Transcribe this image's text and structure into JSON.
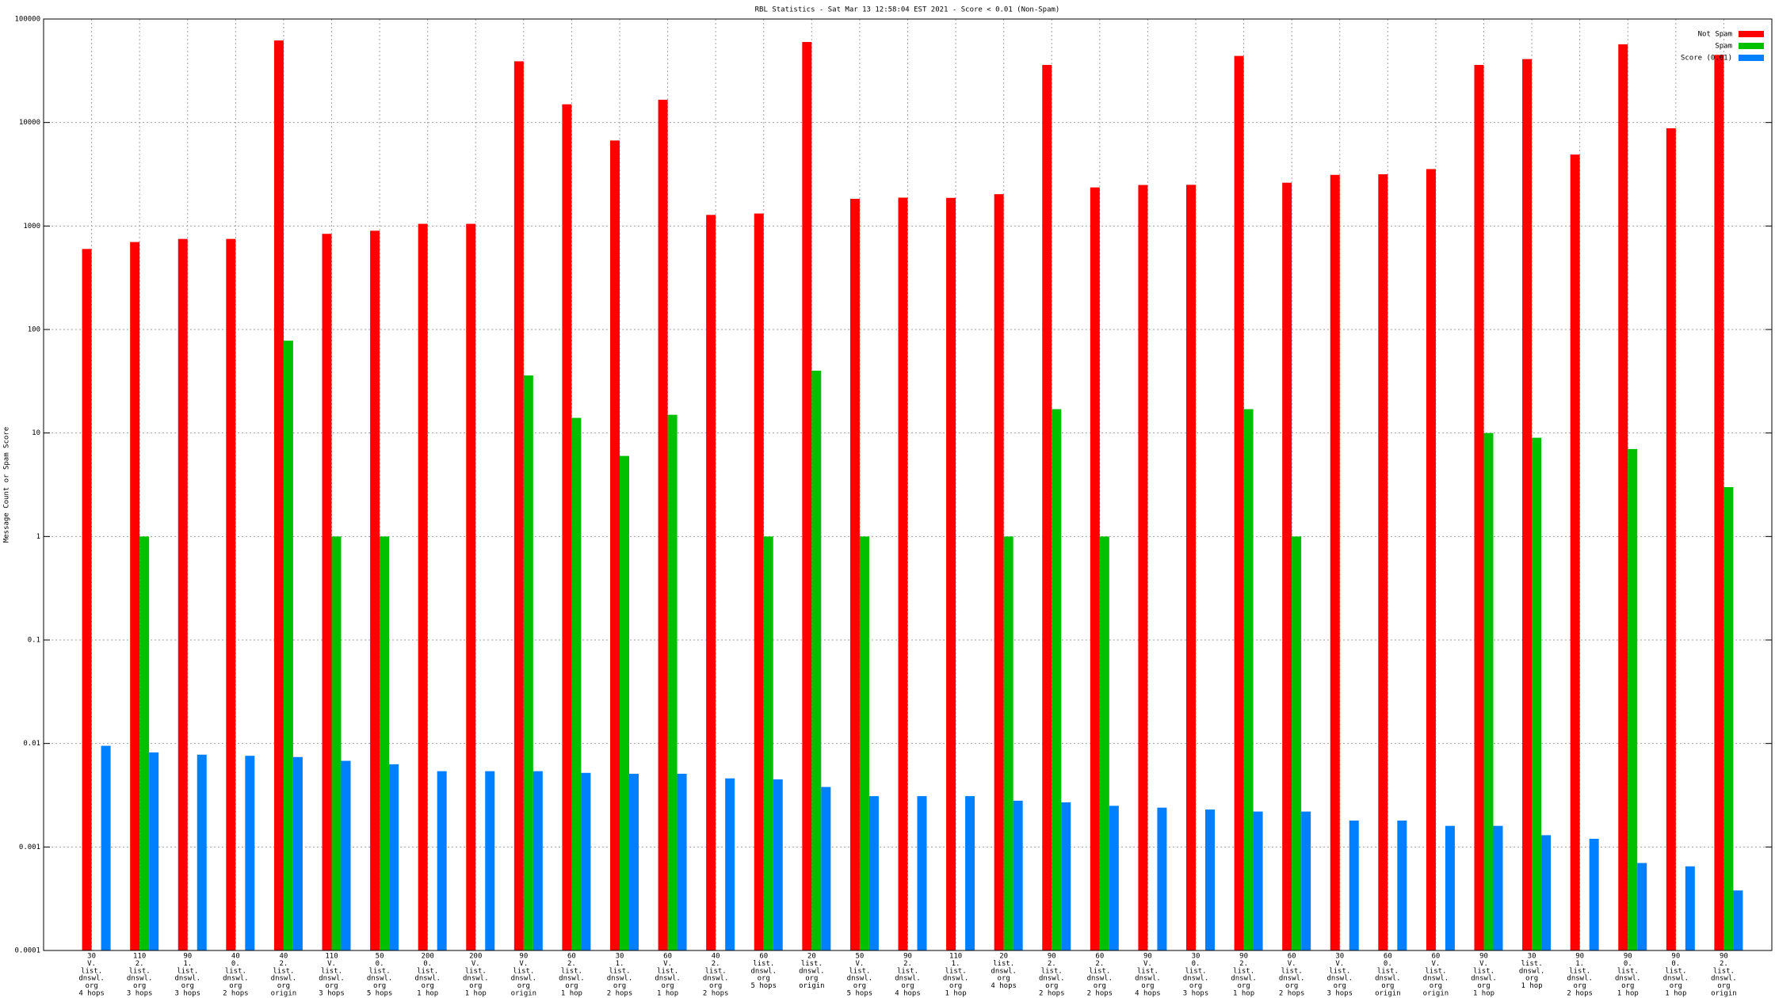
{
  "chart_data": {
    "type": "bar",
    "title": "RBL Statistics - Sat Mar 13 12:58:04 EST 2021 - Score < 0.01 (Non-Spam)",
    "y_label": "Message Count or Spam Score",
    "log_scale": true,
    "grid": true,
    "legend": "top-right",
    "categories": [
      [
        "30",
        "V.",
        "list.",
        "dnswl.",
        "org",
        "4 hops"
      ],
      [
        "110",
        "2.",
        "list.",
        "dnswl.",
        "org",
        "3 hops"
      ],
      [
        "90",
        "1.",
        "list.",
        "dnswl.",
        "org",
        "3 hops"
      ],
      [
        "40",
        "0.",
        "list.",
        "dnswl.",
        "org",
        "2 hops"
      ],
      [
        "40",
        "2.",
        "list.",
        "dnswl.",
        "org",
        "origin"
      ],
      [
        "110",
        "V.",
        "list.",
        "dnswl.",
        "org",
        "3 hops"
      ],
      [
        "50",
        "0.",
        "list.",
        "dnswl.",
        "org",
        "5 hops"
      ],
      [
        "200",
        "0.",
        "list.",
        "dnswl.",
        "org",
        "1 hop"
      ],
      [
        "200",
        "V.",
        "list.",
        "dnswl.",
        "org",
        "1 hop"
      ],
      [
        "90",
        "V.",
        "list.",
        "dnswl.",
        "org",
        "origin"
      ],
      [
        "60",
        "2.",
        "list.",
        "dnswl.",
        "org",
        "1 hop"
      ],
      [
        "30",
        "1.",
        "list.",
        "dnswl.",
        "org",
        "2 hops"
      ],
      [
        "60",
        "V.",
        "list.",
        "dnswl.",
        "org",
        "1 hop"
      ],
      [
        "40",
        "2.",
        "list.",
        "dnswl.",
        "org",
        "2 hops"
      ],
      [
        "60",
        "list.",
        "dnswl.",
        "org",
        "5 hops"
      ],
      [
        "20",
        "list.",
        "dnswl.",
        "org",
        "origin"
      ],
      [
        "50",
        "V.",
        "list.",
        "dnswl.",
        "org",
        "5 hops"
      ],
      [
        "90",
        "2.",
        "list.",
        "dnswl.",
        "org",
        "4 hops"
      ],
      [
        "110",
        "1.",
        "list.",
        "dnswl.",
        "org",
        "1 hop"
      ],
      [
        "20",
        "list.",
        "dnswl.",
        "org",
        "4 hops"
      ],
      [
        "90",
        "2.",
        "list.",
        "dnswl.",
        "org",
        "2 hops"
      ],
      [
        "60",
        "2.",
        "list.",
        "dnswl.",
        "org",
        "2 hops"
      ],
      [
        "90",
        "V.",
        "list.",
        "dnswl.",
        "org",
        "4 hops"
      ],
      [
        "30",
        "0.",
        "list.",
        "dnswl.",
        "org",
        "3 hops"
      ],
      [
        "90",
        "2.",
        "list.",
        "dnswl.",
        "org",
        "1 hop"
      ],
      [
        "60",
        "V.",
        "list.",
        "dnswl.",
        "org",
        "2 hops"
      ],
      [
        "30",
        "V.",
        "list.",
        "dnswl.",
        "org",
        "3 hops"
      ],
      [
        "60",
        "0.",
        "list.",
        "dnswl.",
        "org",
        "origin"
      ],
      [
        "60",
        "V.",
        "list.",
        "dnswl.",
        "org",
        "origin"
      ],
      [
        "90",
        "V.",
        "list.",
        "dnswl.",
        "org",
        "1 hop"
      ],
      [
        "30",
        "list.",
        "dnswl.",
        "org",
        "1 hop"
      ],
      [
        "90",
        "1.",
        "list.",
        "dnswl.",
        "org",
        "2 hops"
      ],
      [
        "90",
        "0.",
        "list.",
        "dnswl.",
        "org",
        "1 hop"
      ],
      [
        "90",
        "0.",
        "list.",
        "dnswl.",
        "org",
        "1 hop"
      ],
      [
        "90",
        "2.",
        "list.",
        "dnswl.",
        "org",
        "origin"
      ]
    ],
    "series": [
      {
        "name": "Not Spam",
        "color": "#ff0000",
        "values": [
          600,
          700,
          750,
          750,
          62000,
          840,
          900,
          1050,
          1050,
          39000,
          15000,
          6700,
          16600,
          1280,
          1320,
          60000,
          1830,
          1880,
          1870,
          2030,
          36000,
          2360,
          2490,
          2500,
          44000,
          2620,
          3120,
          3160,
          3550,
          36000,
          41000,
          4900,
          57000,
          8800,
          45000
        ]
      },
      {
        "name": "Spam",
        "color": "#00c000",
        "values": [
          null,
          1,
          null,
          null,
          78,
          1,
          1,
          null,
          null,
          36,
          14,
          6,
          15,
          null,
          1,
          40,
          1,
          null,
          null,
          1,
          17,
          1,
          null,
          null,
          17,
          1,
          null,
          null,
          null,
          10,
          9,
          null,
          7,
          null,
          3
        ]
      },
      {
        "name": "Score (0.01)",
        "color": "#0080ff",
        "values": [
          0.0095,
          0.0082,
          0.0078,
          0.0076,
          0.0074,
          0.0068,
          0.0063,
          0.0054,
          0.0054,
          0.0054,
          0.0052,
          0.0051,
          0.0051,
          0.0046,
          0.0045,
          0.0038,
          0.0031,
          0.0031,
          0.0031,
          0.0028,
          0.0027,
          0.0025,
          0.0024,
          0.0023,
          0.0022,
          0.0022,
          0.0018,
          0.0018,
          0.0016,
          0.0016,
          0.0013,
          0.0012,
          0.0007,
          0.00065,
          0.00038
        ]
      }
    ],
    "ylim": [
      0.0001,
      100000
    ],
    "yticks": [
      0.0001,
      0.001,
      0.01,
      0.1,
      1,
      10,
      100,
      1000,
      10000,
      100000
    ]
  }
}
